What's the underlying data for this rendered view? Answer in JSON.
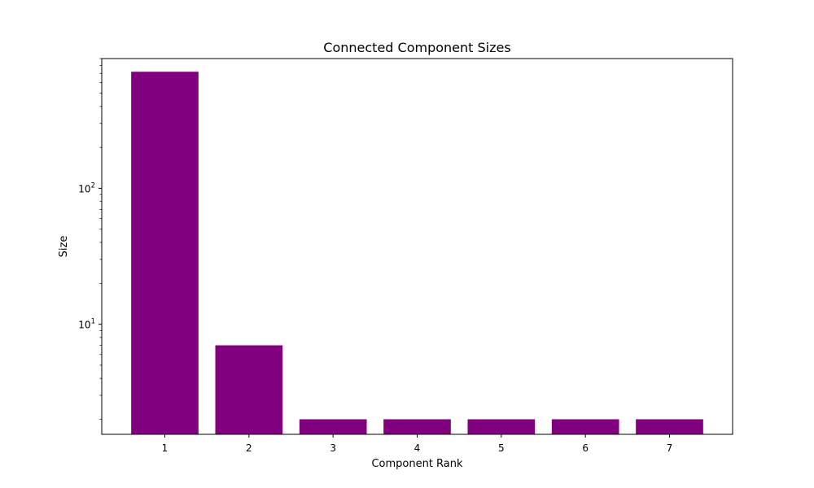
{
  "chart_data": {
    "type": "bar",
    "title": "Connected Component Sizes",
    "xlabel": "Component Rank",
    "ylabel": "Size",
    "categories": [
      "1",
      "2",
      "3",
      "4",
      "5",
      "6",
      "7"
    ],
    "values": [
      720,
      7,
      2,
      2,
      2,
      2,
      2
    ],
    "yscale": "log",
    "ylim": [
      1.55,
      900
    ],
    "bar_color": "#800080",
    "grid": false,
    "legend": "none"
  }
}
